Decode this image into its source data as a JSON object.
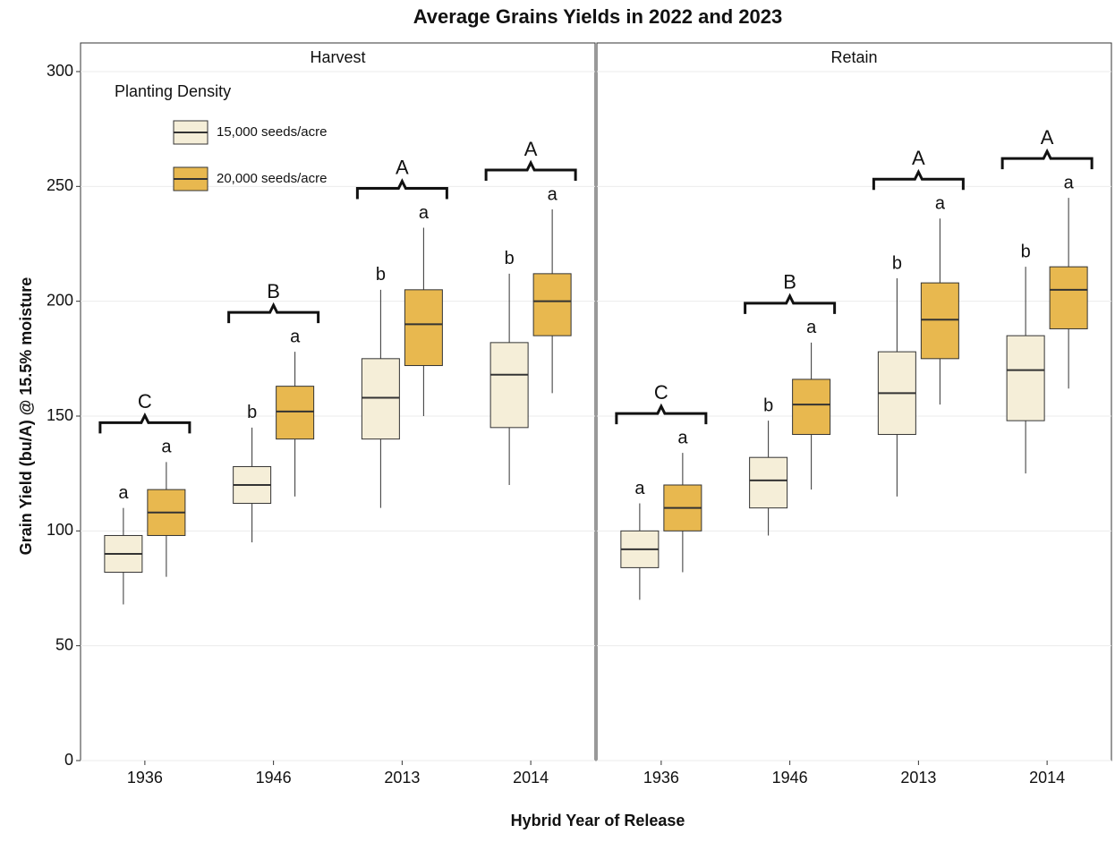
{
  "chart_data": {
    "type": "box",
    "title": "Average Grains Yields in 2022 and 2023",
    "ylabel": "Grain Yield (bu/A) @ 15.5% moisture",
    "xlabel": "Hybrid Year of Release",
    "legend_title": "Planting Density",
    "ylim": [
      0,
      300
    ],
    "yticks": [
      0,
      50,
      100,
      150,
      200,
      250,
      300
    ],
    "grid": true,
    "series": [
      {
        "name": "15,000 seeds/acre",
        "color": "#f5eed8"
      },
      {
        "name": "20,000 seeds/acre",
        "color": "#e8b84f"
      }
    ],
    "facets": [
      {
        "label": "Harvest",
        "categories": [
          "1936",
          "1946",
          "2013",
          "2014"
        ],
        "group_letters": [
          "C",
          "B",
          "A",
          "A"
        ],
        "boxes": [
          {
            "min": [
              68,
              95,
              110,
              120
            ],
            "q1": [
              82,
              112,
              140,
              145
            ],
            "median": [
              90,
              120,
              158,
              168
            ],
            "q3": [
              98,
              128,
              175,
              182
            ],
            "max": [
              110,
              145,
              205,
              212
            ],
            "letters": [
              "a",
              "b",
              "b",
              "b"
            ]
          },
          {
            "min": [
              80,
              115,
              150,
              160
            ],
            "q1": [
              98,
              140,
              172,
              185
            ],
            "median": [
              108,
              152,
              190,
              200
            ],
            "q3": [
              118,
              163,
              205,
              212
            ],
            "max": [
              130,
              178,
              232,
              240
            ],
            "letters": [
              "a",
              "a",
              "a",
              "a"
            ]
          }
        ]
      },
      {
        "label": "Retain",
        "categories": [
          "1936",
          "1946",
          "2013",
          "2014"
        ],
        "group_letters": [
          "C",
          "B",
          "A",
          "A"
        ],
        "boxes": [
          {
            "min": [
              70,
              98,
              115,
              125
            ],
            "q1": [
              84,
              110,
              142,
              148
            ],
            "median": [
              92,
              122,
              160,
              170
            ],
            "q3": [
              100,
              132,
              178,
              185
            ],
            "max": [
              112,
              148,
              210,
              215
            ],
            "letters": [
              "a",
              "b",
              "b",
              "b"
            ]
          },
          {
            "min": [
              82,
              118,
              155,
              162
            ],
            "q1": [
              100,
              142,
              175,
              188
            ],
            "median": [
              110,
              155,
              192,
              205
            ],
            "q3": [
              120,
              166,
              208,
              215
            ],
            "max": [
              134,
              182,
              236,
              245
            ],
            "letters": [
              "a",
              "a",
              "a",
              "a"
            ]
          }
        ]
      }
    ]
  }
}
